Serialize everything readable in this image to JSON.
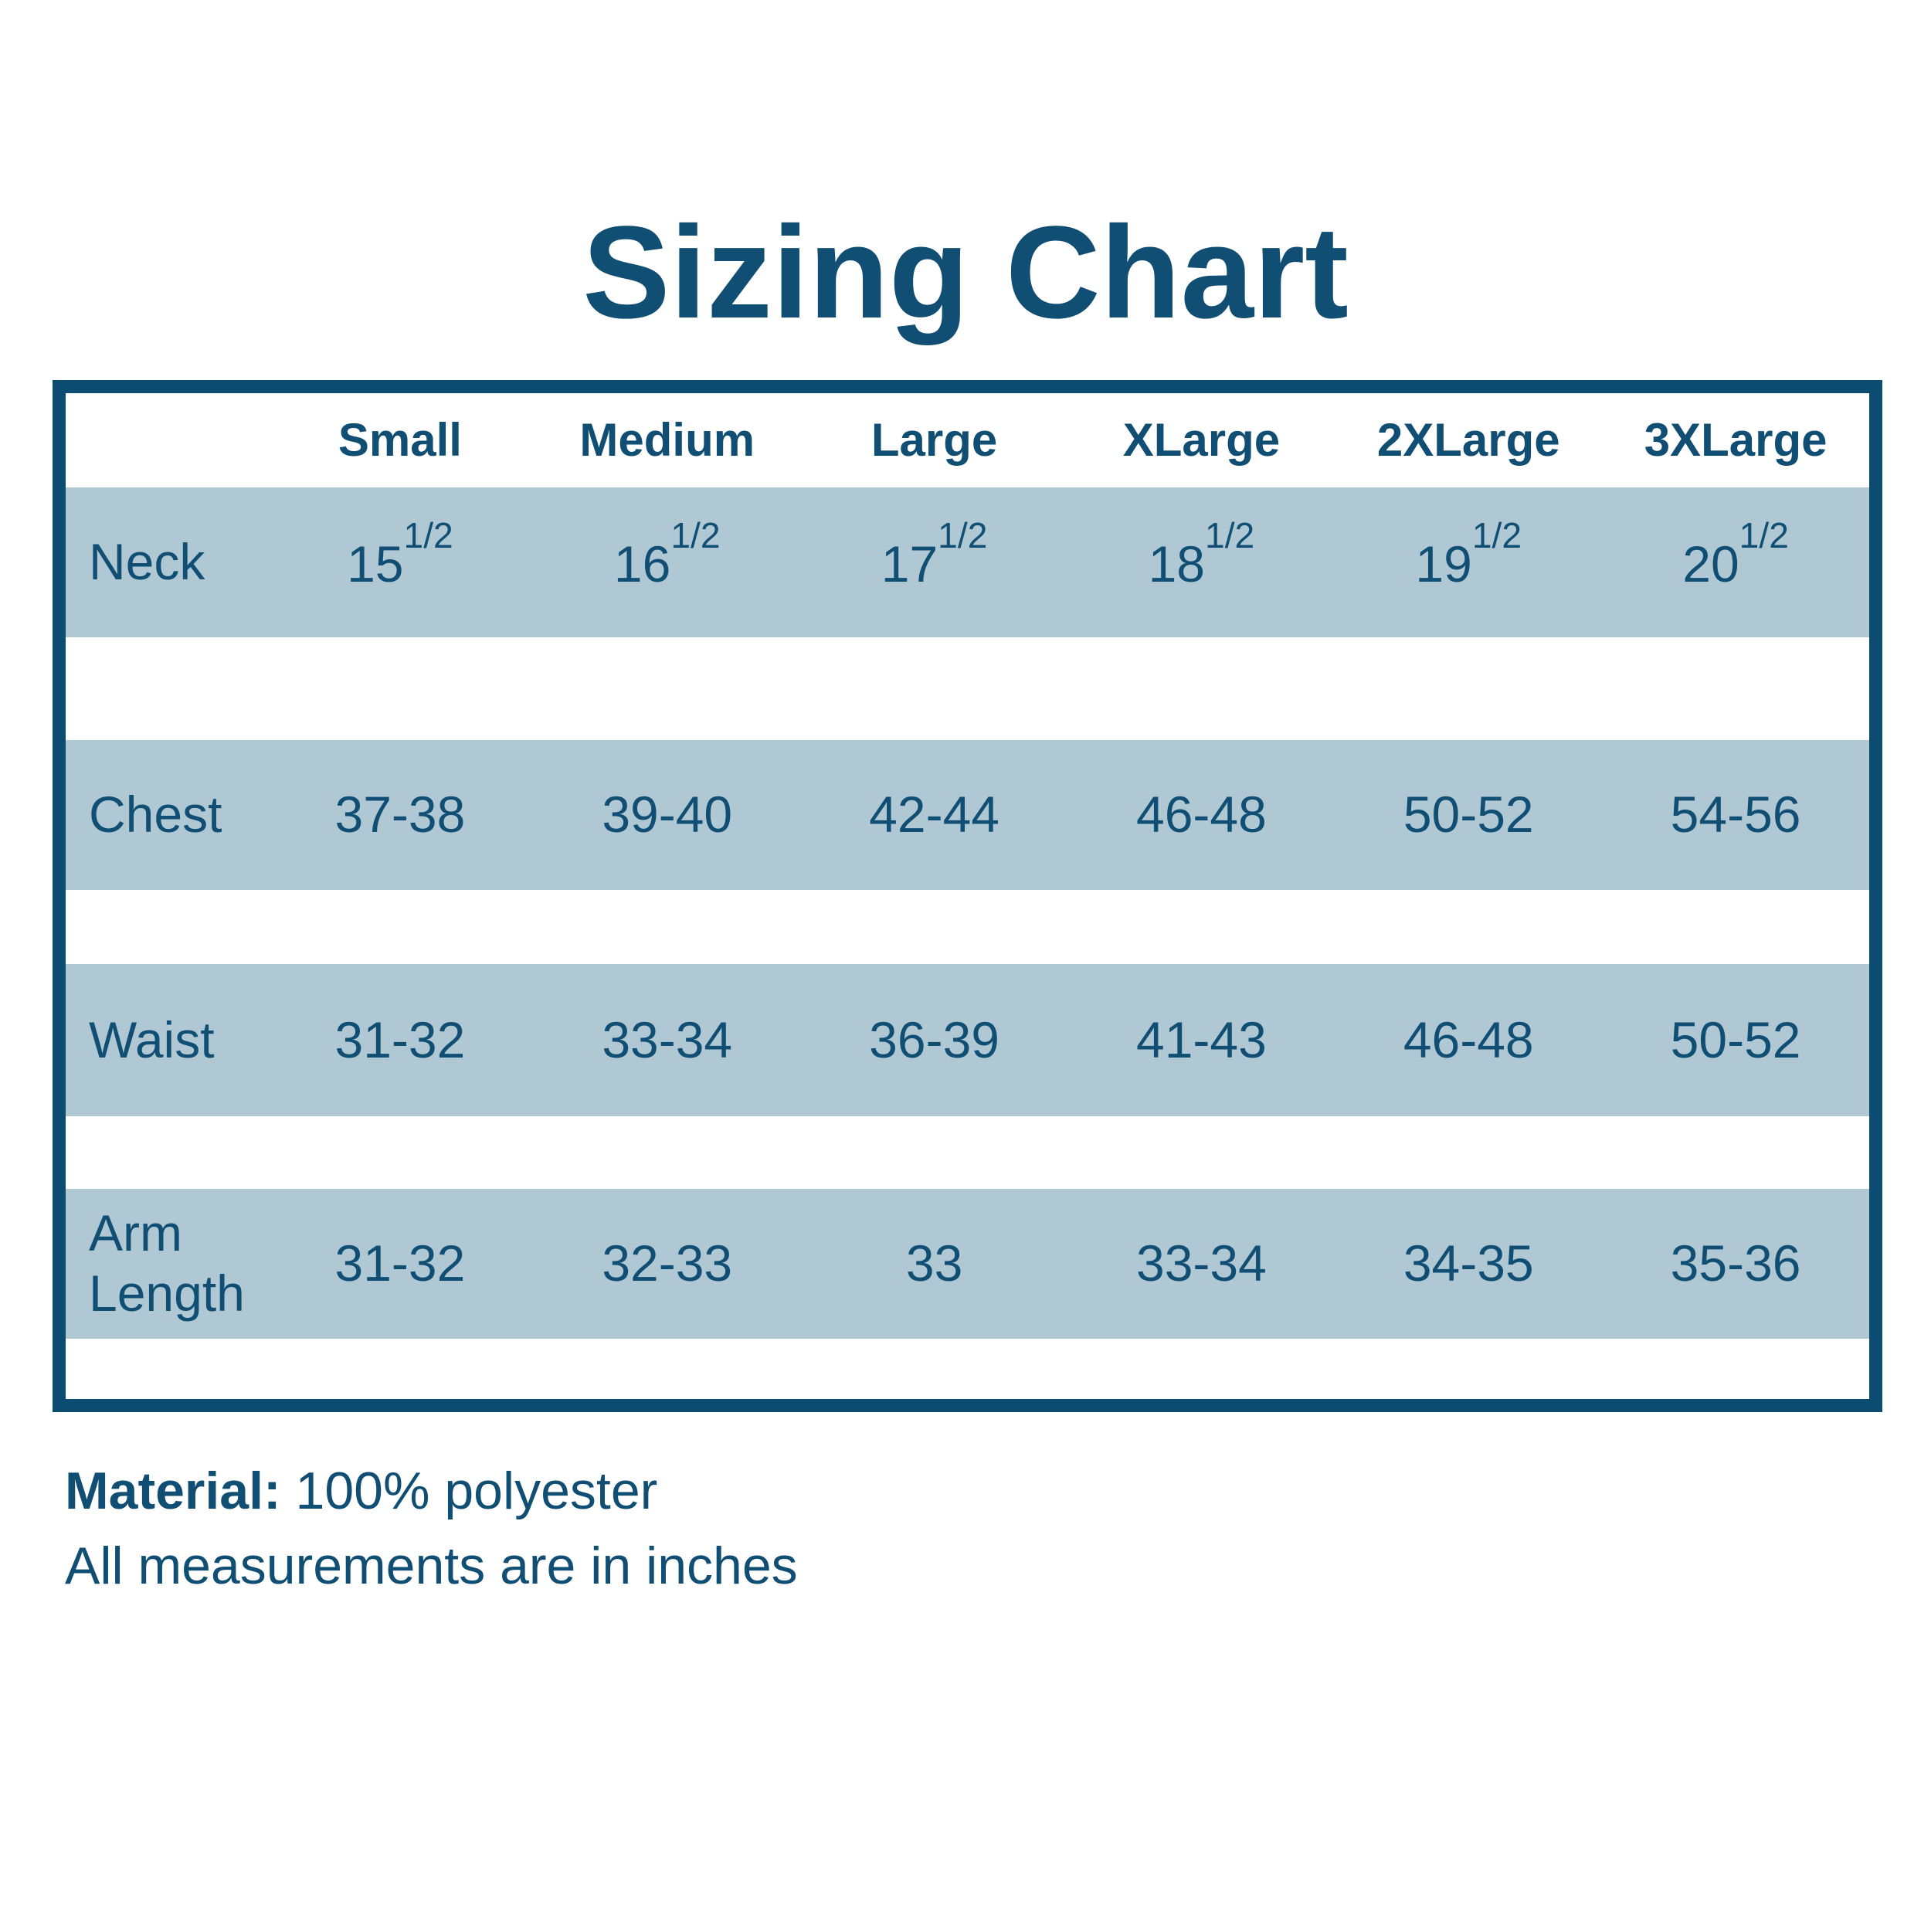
{
  "title": "Sizing Chart",
  "colors": {
    "ink": "#104e73",
    "border": "#0c4c70",
    "band": "#afc8d4",
    "background": "#ffffff"
  },
  "table": {
    "size_headers": [
      "Small",
      "Medium",
      "Large",
      "XLarge",
      "2XLarge",
      "3XLarge"
    ],
    "rows": [
      {
        "label": "Neck",
        "cells": [
          {
            "base": "15",
            "sup": "1/2"
          },
          {
            "base": "16",
            "sup": "1/2"
          },
          {
            "base": "17",
            "sup": "1/2"
          },
          {
            "base": "18",
            "sup": "1/2"
          },
          {
            "base": "19",
            "sup": "1/2"
          },
          {
            "base": "20",
            "sup": "1/2"
          }
        ]
      },
      {
        "label": "Chest",
        "cells": [
          {
            "base": "37-38"
          },
          {
            "base": "39-40"
          },
          {
            "base": "42-44"
          },
          {
            "base": "46-48"
          },
          {
            "base": "50-52"
          },
          {
            "base": "54-56"
          }
        ]
      },
      {
        "label": "Waist",
        "cells": [
          {
            "base": "31-32"
          },
          {
            "base": "33-34"
          },
          {
            "base": "36-39"
          },
          {
            "base": "41-43"
          },
          {
            "base": "46-48"
          },
          {
            "base": "50-52"
          }
        ]
      },
      {
        "label": "Arm Length",
        "cells": [
          {
            "base": "31-32"
          },
          {
            "base": "32-33"
          },
          {
            "base": "33"
          },
          {
            "base": "33-34"
          },
          {
            "base": "34-35"
          },
          {
            "base": "35-36"
          }
        ]
      }
    ]
  },
  "footer": {
    "material_label": "Material:",
    "material_value": "100% polyester",
    "note": "All measurements are in inches"
  },
  "chart_data": {
    "type": "table",
    "title": "Sizing Chart",
    "columns": [
      "",
      "Small",
      "Medium",
      "Large",
      "XLarge",
      "2XLarge",
      "3XLarge"
    ],
    "rows": [
      [
        "Neck",
        "15 1/2",
        "16 1/2",
        "17 1/2",
        "18 1/2",
        "19 1/2",
        "20 1/2"
      ],
      [
        "Chest",
        "37-38",
        "39-40",
        "42-44",
        "46-48",
        "50-52",
        "54-56"
      ],
      [
        "Waist",
        "31-32",
        "33-34",
        "36-39",
        "41-43",
        "46-48",
        "50-52"
      ],
      [
        "Arm Length",
        "31-32",
        "32-33",
        "33",
        "33-34",
        "34-35",
        "35-36"
      ]
    ],
    "notes": [
      "Material: 100% polyester",
      "All measurements are in inches"
    ],
    "layout_hints": {
      "banded_rows": true,
      "band_color": "#afc8d4",
      "outer_border_color": "#0c4c70",
      "units": "inches"
    }
  }
}
